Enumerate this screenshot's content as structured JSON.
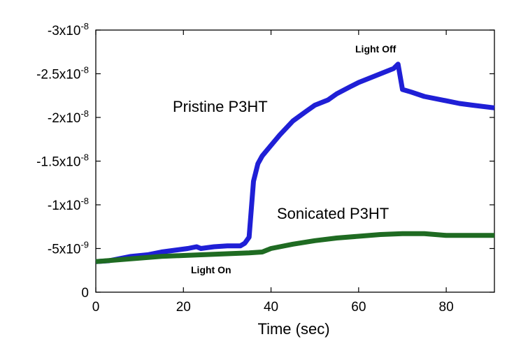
{
  "chart_data": {
    "type": "line",
    "xlabel": "Time (sec)",
    "ylabel": "",
    "xlim": [
      0,
      91
    ],
    "ylim": [
      0,
      -3e-08
    ],
    "y_axis_direction": "reversed (negative values upward)",
    "grid": false,
    "legend": "none (series labeled directly on the plot)",
    "x_ticks": [
      {
        "value": 0,
        "label": "0"
      },
      {
        "value": 20,
        "label": "20"
      },
      {
        "value": 40,
        "label": "40"
      },
      {
        "value": 60,
        "label": "60"
      },
      {
        "value": 80,
        "label": "80"
      }
    ],
    "y_ticks": [
      {
        "value": 0,
        "base": "0",
        "exp": ""
      },
      {
        "value": -5e-09,
        "base": "-5x10",
        "exp": "-9"
      },
      {
        "value": -1e-08,
        "base": "-1x10",
        "exp": "-8"
      },
      {
        "value": -1.5e-08,
        "base": "-1.5x10",
        "exp": "-8"
      },
      {
        "value": -2e-08,
        "base": "-2x10",
        "exp": "-8"
      },
      {
        "value": -2.5e-08,
        "base": "-2.5x10",
        "exp": "-8"
      },
      {
        "value": -3e-08,
        "base": "-3x10",
        "exp": "-8"
      }
    ],
    "series": [
      {
        "name": "Pristine P3HT",
        "color": "#1f1fd6",
        "x": [
          0,
          3,
          5,
          8,
          12,
          15,
          18,
          21,
          23,
          24,
          27,
          30,
          33,
          34,
          35,
          36,
          37,
          38,
          40,
          42,
          45,
          48,
          50,
          53,
          55,
          58,
          60,
          63,
          65,
          68,
          69,
          70,
          72,
          75,
          80,
          83,
          86,
          91
        ],
        "y": [
          -3.5e-09,
          -3.6e-09,
          -3.8e-09,
          -4.1e-09,
          -4.3e-09,
          -4.6e-09,
          -4.8e-09,
          -5e-09,
          -5.2e-09,
          -5e-09,
          -5.2e-09,
          -5.3e-09,
          -5.3e-09,
          -5.6e-09,
          -6.3e-09,
          -1.27e-08,
          -1.47e-08,
          -1.56e-08,
          -1.68e-08,
          -1.8e-08,
          -1.96e-08,
          -2.07e-08,
          -2.14e-08,
          -2.2e-08,
          -2.27e-08,
          -2.35e-08,
          -2.4e-08,
          -2.46e-08,
          -2.5e-08,
          -2.56e-08,
          -2.61e-08,
          -2.32e-08,
          -2.29e-08,
          -2.24e-08,
          -2.19e-08,
          -2.16e-08,
          -2.14e-08,
          -2.11e-08
        ]
      },
      {
        "name": "Sonicated P3HT",
        "color": "#1f6b22",
        "x": [
          0,
          5,
          10,
          15,
          20,
          25,
          30,
          35,
          38,
          40,
          45,
          50,
          55,
          60,
          65,
          70,
          75,
          80,
          85,
          91
        ],
        "y": [
          -3.5e-09,
          -3.7e-09,
          -3.9e-09,
          -4.1e-09,
          -4.2e-09,
          -4.3e-09,
          -4.4e-09,
          -4.5e-09,
          -4.6e-09,
          -5e-09,
          -5.5e-09,
          -5.9e-09,
          -6.2e-09,
          -6.4e-09,
          -6.6e-09,
          -6.7e-09,
          -6.7e-09,
          -6.5e-09,
          -6.5e-09,
          -6.5e-09
        ]
      }
    ],
    "annotations": {
      "light_on": {
        "text": "Light On",
        "x": 35
      },
      "light_off": {
        "text": "Light Off",
        "x": 69
      }
    }
  }
}
